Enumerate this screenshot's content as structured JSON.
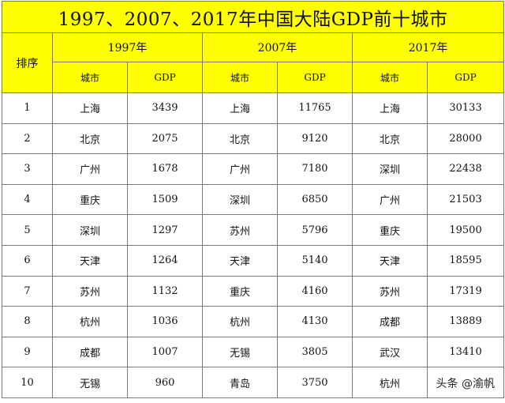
{
  "title": "1997、2007、2017年中国大陆GDP前十城市",
  "rank_header": "排序",
  "years": [
    "1997年",
    "2007年",
    "2017年"
  ],
  "col_city": "城市",
  "col_gdp": "GDP",
  "rows": [
    {
      "rank": "1",
      "c1997": "上海",
      "g1997": "3439",
      "c2007": "上海",
      "g2007": "11765",
      "c2017": "上海",
      "g2017": "30133"
    },
    {
      "rank": "2",
      "c1997": "北京",
      "g1997": "2075",
      "c2007": "北京",
      "g2007": "9120",
      "c2017": "北京",
      "g2017": "28000"
    },
    {
      "rank": "3",
      "c1997": "广州",
      "g1997": "1678",
      "c2007": "广州",
      "g2007": "7180",
      "c2017": "深圳",
      "g2017": "22438"
    },
    {
      "rank": "4",
      "c1997": "重庆",
      "g1997": "1509",
      "c2007": "深圳",
      "g2007": "6850",
      "c2017": "广州",
      "g2017": "21503"
    },
    {
      "rank": "5",
      "c1997": "深圳",
      "g1997": "1297",
      "c2007": "苏州",
      "g2007": "5796",
      "c2017": "重庆",
      "g2017": "19500"
    },
    {
      "rank": "6",
      "c1997": "天津",
      "g1997": "1264",
      "c2007": "天津",
      "g2007": "5140",
      "c2017": "天津",
      "g2017": "18595"
    },
    {
      "rank": "7",
      "c1997": "苏州",
      "g1997": "1132",
      "c2007": "重庆",
      "g2007": "4160",
      "c2017": "苏州",
      "g2017": "17319"
    },
    {
      "rank": "8",
      "c1997": "杭州",
      "g1997": "1036",
      "c2007": "杭州",
      "g2007": "4130",
      "c2017": "成都",
      "g2017": "13889"
    },
    {
      "rank": "9",
      "c1997": "成都",
      "g1997": "1007",
      "c2007": "无锡",
      "g2007": "3805",
      "c2017": "武汉",
      "g2017": "13410"
    },
    {
      "rank": "10",
      "c1997": "无锡",
      "g1997": "960",
      "c2007": "青岛",
      "g2007": "3750",
      "c2017": "杭州",
      "g2017": ""
    }
  ],
  "watermark": "头条 @渝帆",
  "colors": {
    "header_bg": "#ffff00",
    "border": "#7a7a7a"
  }
}
